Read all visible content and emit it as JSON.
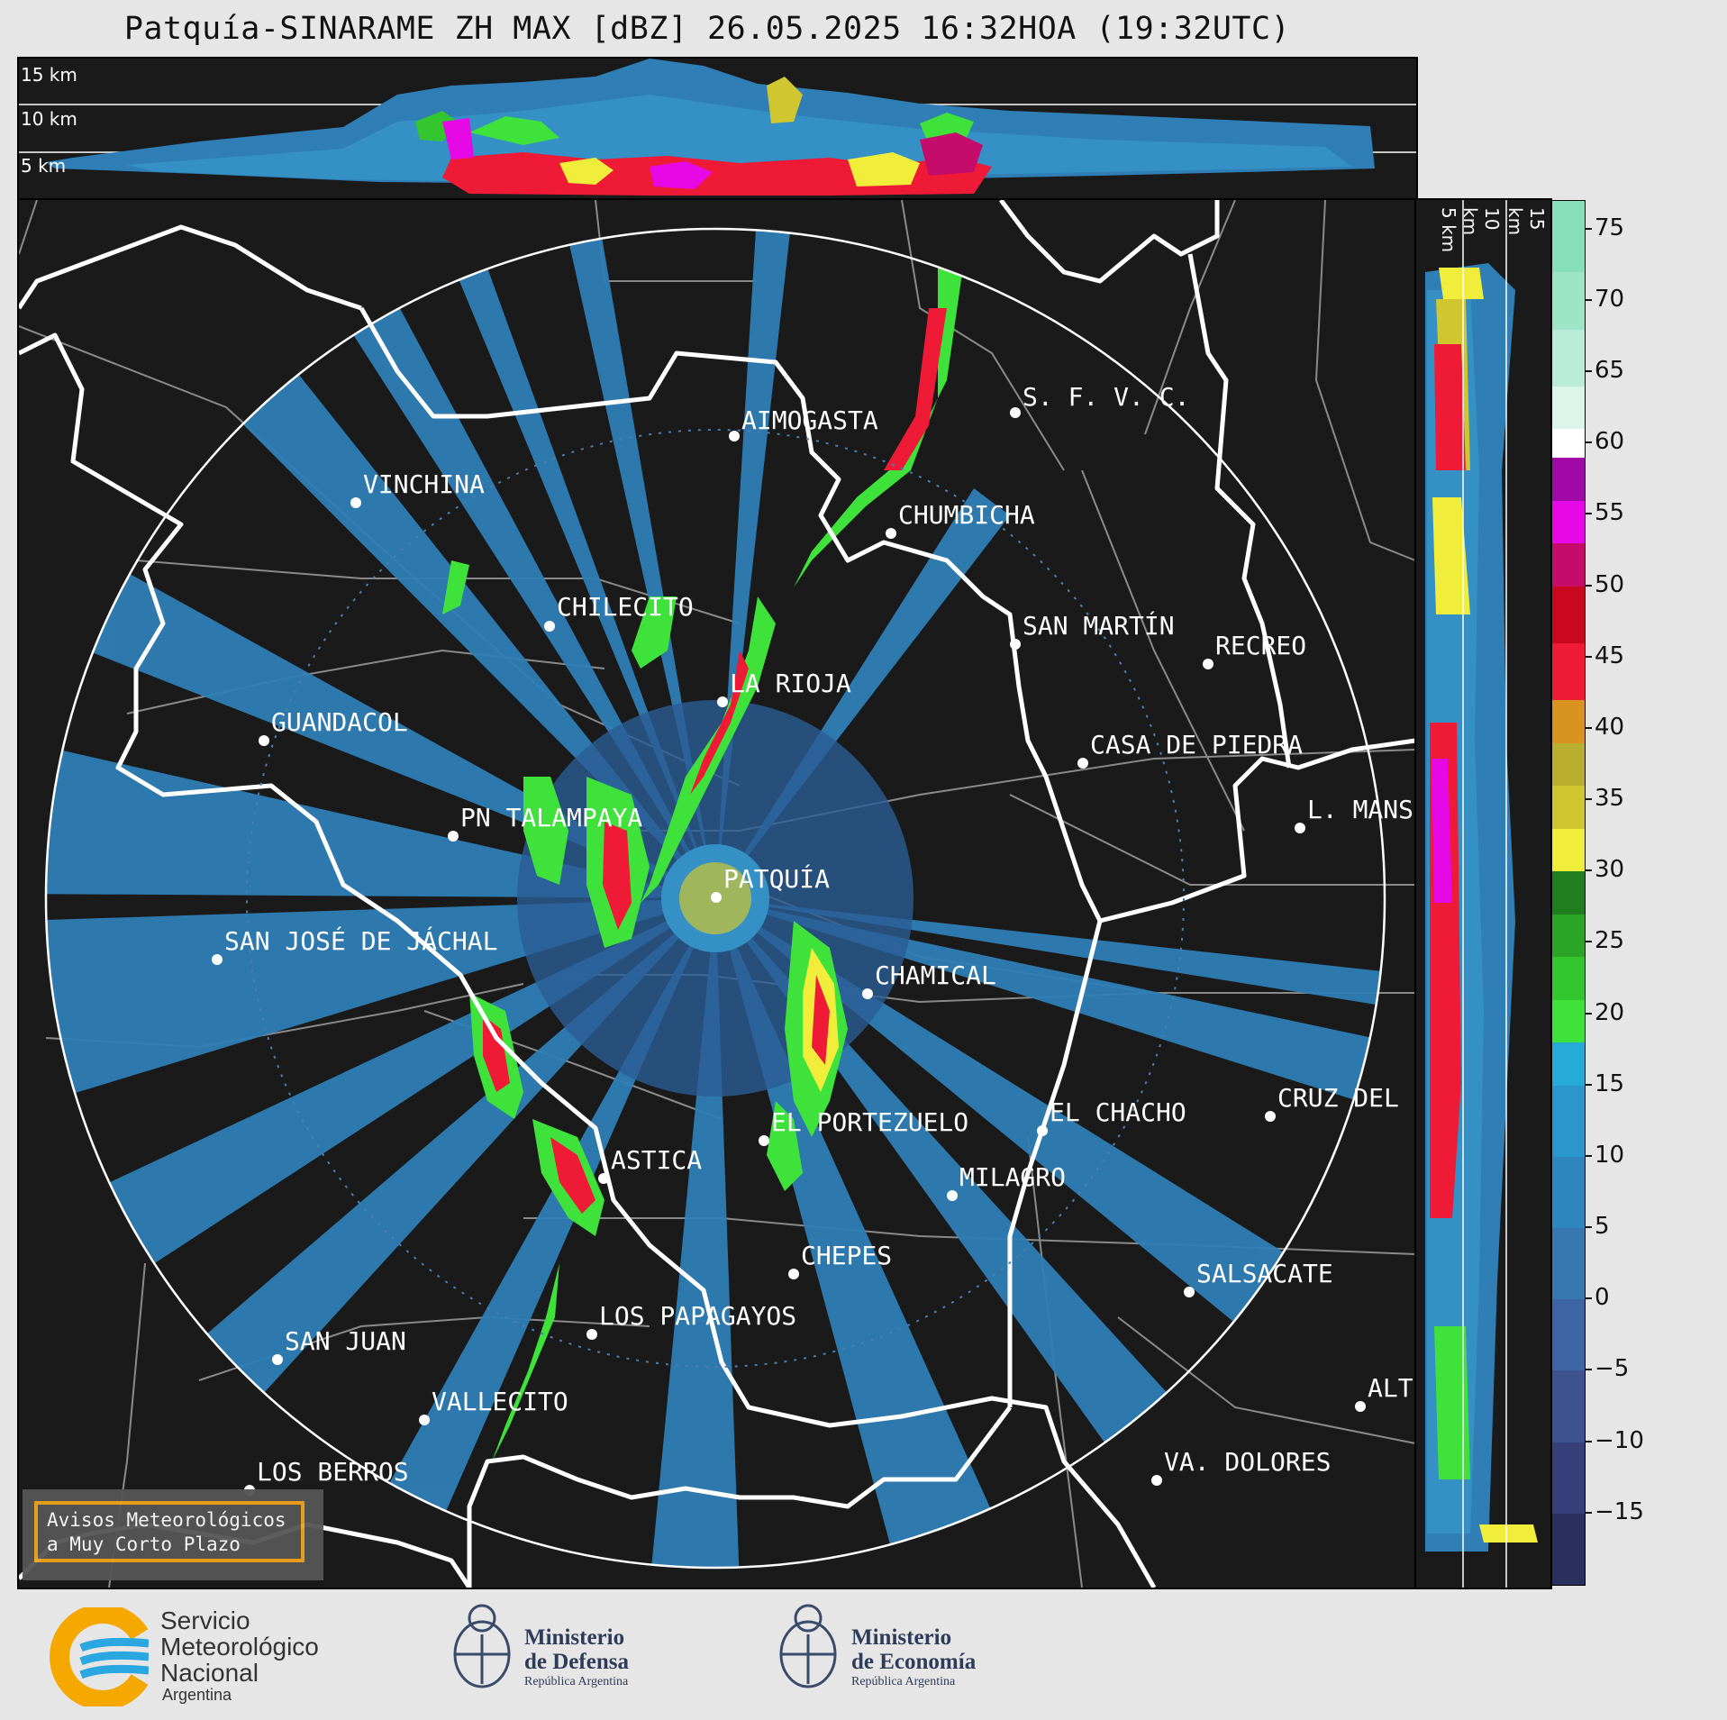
{
  "title": "Patquía-SINARAME ZH MAX [dBZ] 26.05.2025 16:32HOA (19:32UTC)",
  "top_panel": {
    "height_labels": [
      "15 km",
      "10 km",
      "5 km"
    ]
  },
  "side_panel": {
    "height_labels": [
      "5 km",
      "10 km",
      "15 km"
    ]
  },
  "colorbar": {
    "unit": "dBZ",
    "ticks": [
      "75",
      "70",
      "65",
      "60",
      "55",
      "50",
      "45",
      "40",
      "35",
      "30",
      "25",
      "20",
      "15",
      "10",
      "5",
      "0",
      "−5",
      "−10",
      "−15"
    ],
    "tick_values": [
      75,
      70,
      65,
      60,
      55,
      50,
      45,
      40,
      35,
      30,
      25,
      20,
      15,
      10,
      5,
      0,
      -5,
      -10,
      -15
    ],
    "range": [
      -20,
      77
    ],
    "stops": [
      {
        "from": -20,
        "color": "#2b2f5e"
      },
      {
        "from": -15,
        "color": "#35407a"
      },
      {
        "from": -10,
        "color": "#3f5290"
      },
      {
        "from": -5,
        "color": "#3d64a3"
      },
      {
        "from": 0,
        "color": "#3778b0"
      },
      {
        "from": 5,
        "color": "#2f86bf"
      },
      {
        "from": 10,
        "color": "#2a96cc"
      },
      {
        "from": 15,
        "color": "#26aad8"
      },
      {
        "from": 18,
        "color": "#3fe23a"
      },
      {
        "from": 21,
        "color": "#34c62e"
      },
      {
        "from": 24,
        "color": "#2aa526"
      },
      {
        "from": 27,
        "color": "#1f7f1f"
      },
      {
        "from": 30,
        "color": "#f0ee3b"
      },
      {
        "from": 33,
        "color": "#cfc630"
      },
      {
        "from": 36,
        "color": "#b9ae2e"
      },
      {
        "from": 39,
        "color": "#d99420"
      },
      {
        "from": 42,
        "color": "#ef1a36"
      },
      {
        "from": 46,
        "color": "#c9081f"
      },
      {
        "from": 50,
        "color": "#c50c6a"
      },
      {
        "from": 53,
        "color": "#e609e6"
      },
      {
        "from": 56,
        "color": "#a008a8"
      },
      {
        "from": 59,
        "color": "#ffffff"
      },
      {
        "from": 61,
        "color": "#dcf5ea"
      },
      {
        "from": 64,
        "color": "#b8ecd8"
      },
      {
        "from": 68,
        "color": "#9ee5c8"
      },
      {
        "from": 72,
        "color": "#86dfb9"
      }
    ]
  },
  "radar_site": "PATQUÍA",
  "cities": [
    {
      "name": "AIMOGASTA"
    },
    {
      "name": "S. F. V. C."
    },
    {
      "name": "VINCHINA"
    },
    {
      "name": "CHUMBICHA"
    },
    {
      "name": "CHILECITO"
    },
    {
      "name": "SAN MARTÍN"
    },
    {
      "name": "RECREO"
    },
    {
      "name": "LA RIOJA"
    },
    {
      "name": "GUANDACOL"
    },
    {
      "name": "CASA DE PIEDRA"
    },
    {
      "name": "L. MANS"
    },
    {
      "name": "PN TALAMPAYA"
    },
    {
      "name": "PATQUÍA"
    },
    {
      "name": "SAN JOSÉ DE JÁCHAL"
    },
    {
      "name": "CHAMICAL"
    },
    {
      "name": "EL CHACHO"
    },
    {
      "name": "CRUZ DEL"
    },
    {
      "name": "EL PORTEZUELO"
    },
    {
      "name": "ASTICA"
    },
    {
      "name": "MILAGRO"
    },
    {
      "name": "CHEPES"
    },
    {
      "name": "SALSACATE"
    },
    {
      "name": "LOS PAPAGAYOS"
    },
    {
      "name": "SAN JUAN"
    },
    {
      "name": "VALLECITO"
    },
    {
      "name": "ALT"
    },
    {
      "name": "LOS BERROS"
    },
    {
      "name": "VA. DOLORES"
    }
  ],
  "badge": {
    "line1": "Avisos Meteorológicos",
    "line2": "a Muy Corto Plazo"
  },
  "logos": {
    "smn": {
      "line1": "Servicio",
      "line2": "Meteorológico",
      "line3": "Nacional",
      "line4": "Argentina"
    },
    "defensa": {
      "line1": "Ministerio",
      "line2": "de Defensa",
      "line3": "República Argentina"
    },
    "economia": {
      "line1": "Ministerio",
      "line2": "de Economía",
      "line3": "República Argentina"
    }
  }
}
